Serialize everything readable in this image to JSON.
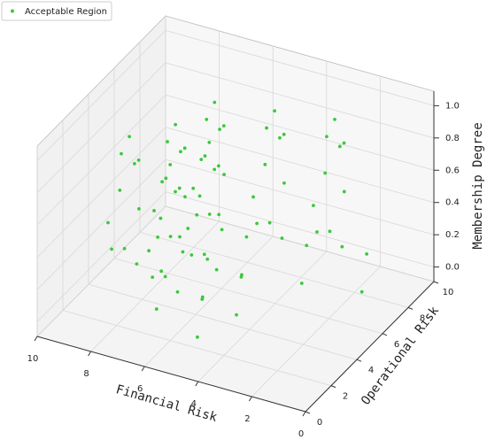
{
  "chart_data": {
    "type": "scatter3d",
    "xlabel": "Financial Risk",
    "ylabel": "Operational Risk",
    "zlabel": "Membership Degree",
    "xlim": [
      0,
      10
    ],
    "ylim": [
      0,
      10
    ],
    "zlim": [
      -0.09,
      1.09
    ],
    "xticks": [
      0,
      2,
      4,
      6,
      8,
      10
    ],
    "yticks": [
      0,
      2,
      4,
      6,
      8,
      10
    ],
    "zticks": [
      {
        "value": 0,
        "label": "0.0"
      },
      0.2,
      0.4,
      0.6,
      0.8,
      {
        "value": 1,
        "label": "1.0"
      }
    ],
    "grid": true,
    "legend": "upper left",
    "series": [
      {
        "name": "Acceptable Region",
        "color": "#3cc83c",
        "x": [
          8,
          8.3,
          7.7,
          8,
          8.5,
          7.5,
          8.7,
          7.8,
          8.9,
          7,
          8.3,
          6.7,
          7,
          7.3,
          6.7,
          7,
          7.5,
          6.5,
          7.7,
          6.8,
          7.9,
          6,
          7.3,
          5.7,
          6.5,
          6.8,
          6.2,
          6.5,
          7,
          6,
          7.2,
          6.3,
          7.4,
          5.5,
          6.8,
          5.2,
          5.5,
          5.8,
          5.2,
          5.5,
          6,
          5,
          6.2,
          5.3,
          6.4,
          4.5,
          5.8,
          4.2,
          4.5,
          4.8,
          4.2,
          4.5,
          5,
          4,
          5.2,
          4.3,
          5.4,
          3.5,
          4.8,
          3.2,
          2.5,
          2.8,
          2.2,
          2.5,
          3,
          2,
          3.2,
          2.3,
          3.4,
          1.5,
          2.8,
          1.2,
          6,
          6.3,
          5.7,
          6,
          6.5,
          5.5,
          6.7,
          5.8,
          6.9,
          5,
          6.3,
          4.7
        ],
        "y": [
          3,
          3,
          3.1,
          3.4,
          3.3,
          2.7,
          2.8,
          2.2,
          3.5,
          3.4,
          4.2,
          2.4,
          4.5,
          4.5,
          4.6,
          4.9,
          4.8,
          4.2,
          4.3,
          3.7,
          5,
          4.9,
          5.7,
          3.9,
          6.5,
          6.5,
          6.6,
          6.9,
          6.8,
          6.2,
          6.3,
          5.7,
          7,
          6.9,
          7.7,
          5.9,
          4,
          4,
          4.1,
          4.4,
          4.3,
          3.7,
          3.8,
          3.2,
          4.5,
          4.4,
          5.2,
          3.4,
          7,
          7,
          7.1,
          7.4,
          7.3,
          6.7,
          6.8,
          6.2,
          7.5,
          7.4,
          8.2,
          6.4,
          7.5,
          7.5,
          7.6,
          7.9,
          7.8,
          7.2,
          7.3,
          6.7,
          8,
          7.9,
          8.7,
          6.9,
          2,
          2,
          2.1,
          2.4,
          2.3,
          1.7,
          1.8,
          1.2,
          2.5,
          2.4,
          3.2,
          1.4
        ],
        "z": [
          1,
          0.88,
          0.86,
          0.8,
          0.62,
          0.6,
          0.45,
          0.38,
          0.22,
          0.18,
          0.1,
          0.04,
          1,
          0.88,
          0.86,
          0.8,
          0.62,
          0.6,
          0.45,
          0.38,
          0.22,
          0.18,
          0.1,
          0.04,
          1,
          0.88,
          0.86,
          0.8,
          0.62,
          0.6,
          0.45,
          0.38,
          0.22,
          0.18,
          0.1,
          0.04,
          1,
          0.88,
          0.86,
          0.8,
          0.62,
          0.6,
          0.45,
          0.38,
          0.22,
          0.18,
          0.1,
          0.04,
          1,
          0.88,
          0.86,
          0.8,
          0.62,
          0.6,
          0.45,
          0.38,
          0.22,
          0.18,
          0.1,
          0.04,
          1,
          0.88,
          0.86,
          0.8,
          0.62,
          0.6,
          0.45,
          0.38,
          0.22,
          0.18,
          0.1,
          0.04,
          1,
          0.88,
          0.86,
          0.8,
          0.62,
          0.6,
          0.45,
          0.38,
          0.22,
          0.18,
          0.1,
          0.04
        ]
      }
    ]
  }
}
